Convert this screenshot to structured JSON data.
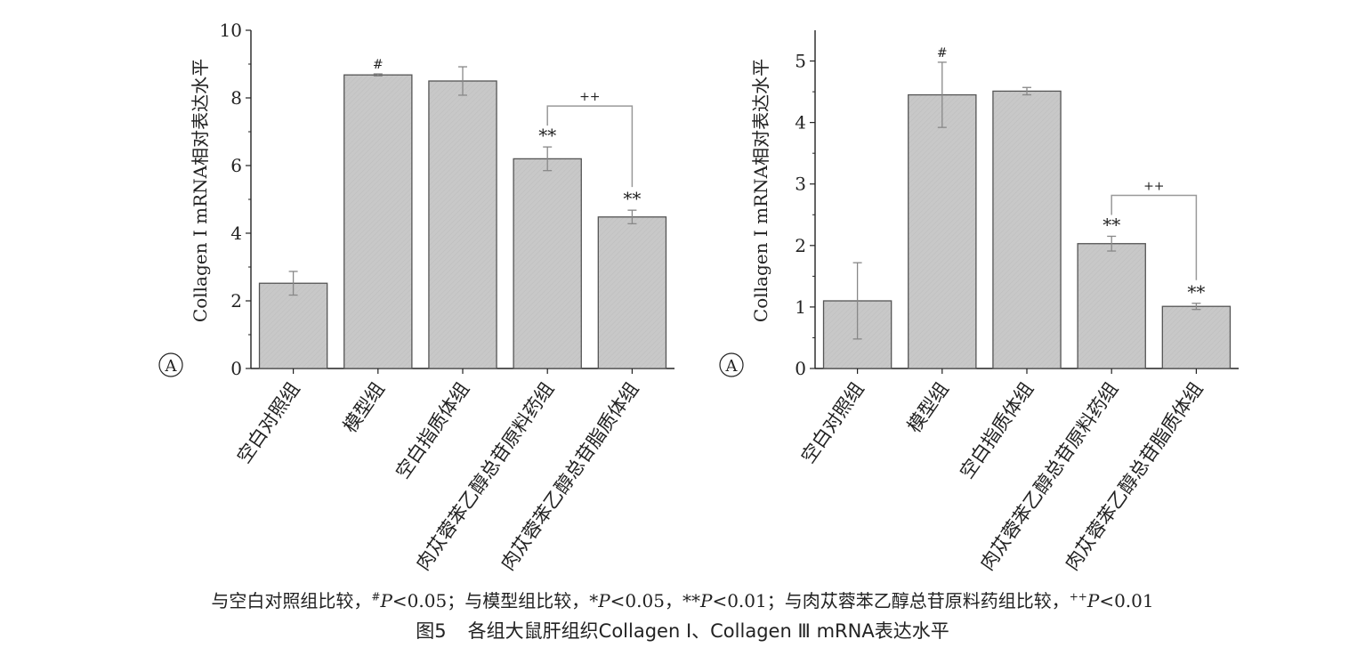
{
  "chart_data": [
    {
      "type": "bar",
      "panel_label": "A",
      "ylabel": "Collagen I mRNA相对表达水平",
      "ylim": [
        0,
        10
      ],
      "yticks": [
        "0",
        "2",
        "4",
        "6",
        "8",
        "10"
      ],
      "categories": [
        "空白对照组",
        "模型组",
        "空白指质体组",
        "肉苁蓉苯乙醇总苷原料药组",
        "肉苁蓉苯乙醇总苷脂质体组"
      ],
      "values": [
        2.52,
        8.68,
        8.5,
        6.2,
        4.48
      ],
      "errors": [
        0.35,
        0.03,
        0.42,
        0.35,
        0.2
      ],
      "markers": [
        "",
        "#",
        "",
        "**",
        "**"
      ],
      "bracket": {
        "from": 3,
        "to": 4,
        "label": "++"
      }
    },
    {
      "type": "bar",
      "panel_label": "A",
      "ylabel": "Collagen I mRNA相对表达水平",
      "ylim": [
        0,
        5.5
      ],
      "yticks": [
        "0",
        "1",
        "2",
        "3",
        "4",
        "5"
      ],
      "categories": [
        "空白对照组",
        "模型组",
        "空白指质体组",
        "肉苁蓉苯乙醇总苷原料药组",
        "肉苁蓉苯乙醇总苷脂质体组"
      ],
      "values": [
        1.1,
        4.45,
        4.51,
        2.03,
        1.01
      ],
      "errors": [
        0.62,
        0.53,
        0.06,
        0.12,
        0.05
      ],
      "markers": [
        "",
        "#",
        "",
        "**",
        "**"
      ],
      "bracket": {
        "from": 3,
        "to": 4,
        "label": "++"
      }
    }
  ],
  "caption": {
    "note_a": "与空白对照组比较，",
    "note_hash": "#",
    "note_p1": "P",
    "note_b": "<0.05；与模型组比较，*",
    "note_p2": "P",
    "note_c": "<0.05，**",
    "note_p3": "P",
    "note_d": "<0.01；与肉苁蓉苯乙醇总苷原料药组比较，",
    "note_plus": "++",
    "note_p4": "P",
    "note_e": "<0.01",
    "fig_number": "图5",
    "fig_title": "各组大鼠肝组织Collagen Ⅰ、Collagen Ⅲ mRNA表达水平"
  },
  "colors": {
    "bar_fill": "#c8c8c8",
    "bar_stroke": "#555555",
    "axis": "#222222",
    "error": "#888888",
    "bracket": "#999999"
  }
}
